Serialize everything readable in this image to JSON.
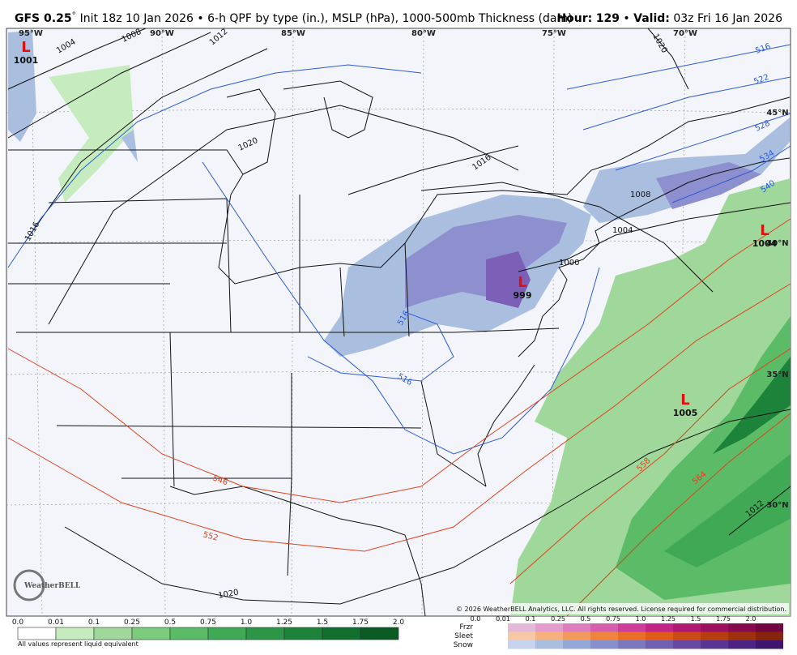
{
  "header": {
    "model": "GFS 0.25",
    "degree": "°",
    "init": "Init 18z 10 Jan 2026",
    "sep": "•",
    "product": "6-h QPF by type (in.), MSLP (hPa), 1000-500mb Thickness (dam)",
    "hour_label": "Hour:",
    "hour": "129",
    "valid_label": "Valid:",
    "valid": "03z Fri 16 Jan 2026"
  },
  "map": {
    "longitudes": [
      "95°W",
      "90°W",
      "85°W",
      "80°W",
      "75°W",
      "70°W"
    ],
    "latitudes": [
      "45°N",
      "40°N",
      "35°N",
      "30°N"
    ],
    "lows": [
      {
        "symbol": "L",
        "pressure": "1001"
      },
      {
        "symbol": "L",
        "pressure": "999"
      },
      {
        "symbol": "L",
        "pressure": "1004"
      },
      {
        "symbol": "L",
        "pressure": "1005"
      }
    ],
    "isobar_labels": [
      "1004",
      "1008",
      "1012",
      "1020",
      "1016",
      "1016",
      "1008",
      "1004",
      "1000",
      "1020",
      "1012",
      "1020"
    ],
    "thickness_labels_cold": [
      "516",
      "522",
      "528",
      "534",
      "540",
      "516",
      "516"
    ],
    "thickness_labels_warm": [
      "546",
      "552",
      "558",
      "564"
    ],
    "copyright": "© 2026 WeatherBELL Analytics, LLC. All rights reserved. License required for commercial distribution.",
    "logo": "WeatherBELL"
  },
  "legend": {
    "rain_ticks": [
      "0.0",
      "0.01",
      "0.1",
      "0.25",
      "0.5",
      "0.75",
      "1.0",
      "1.25",
      "1.5",
      "1.75",
      "2.0"
    ],
    "rain_colors": [
      "#ffffff",
      "#c6ebbf",
      "#9fd89a",
      "#7ccb7d",
      "#5bbb67",
      "#3fa955",
      "#2c9647",
      "#1d823a",
      "#116f2e",
      "#0a5a23"
    ],
    "note": "All values represent liquid equivalent",
    "types": [
      "Frzr",
      "Sleet",
      "Snow"
    ],
    "type_ticks": [
      "0.0",
      "0.01",
      "0.1",
      "0.25",
      "0.5",
      "0.75",
      "1.0",
      "1.25",
      "1.5",
      "1.75",
      "2.0"
    ],
    "type_colors": [
      [
        "#e6b8d8",
        "#e39ccb",
        "#dc7ebc",
        "#d45fac",
        "#cc3e9a",
        "#c22487",
        "#b01872",
        "#9c1060",
        "#860a4e",
        "#70063f"
      ],
      [
        "#f7c8a6",
        "#f5b07e",
        "#f29a5c",
        "#ee843e",
        "#e96e28",
        "#de5b1c",
        "#cb4a16",
        "#b63c12",
        "#9e300e",
        "#86250b"
      ],
      [
        "#c5d3ec",
        "#aabfdf",
        "#93a8d6",
        "#8790cc",
        "#7c78c0",
        "#7060b2",
        "#6549a3",
        "#583592",
        "#4a2480",
        "#3d156c"
      ]
    ]
  }
}
